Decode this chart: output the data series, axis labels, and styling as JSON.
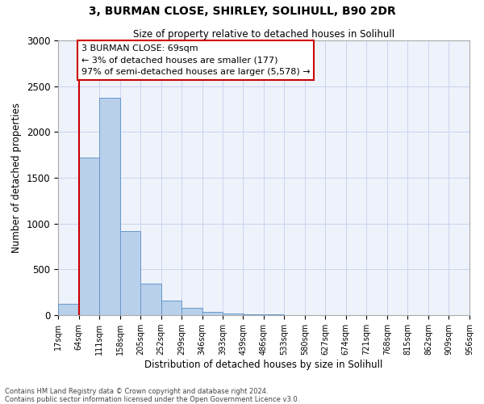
{
  "title": "3, BURMAN CLOSE, SHIRLEY, SOLIHULL, B90 2DR",
  "subtitle": "Size of property relative to detached houses in Solihull",
  "xlabel": "Distribution of detached houses by size in Solihull",
  "ylabel": "Number of detached properties",
  "bar_color": "#b8d0ea",
  "bar_edge_color": "#6699cc",
  "background_color": "#eef2fb",
  "annotation_box_color": "#ffffff",
  "annotation_line_color": "#cc0000",
  "bin_edges": [
    17,
    64,
    111,
    158,
    205,
    252,
    299,
    346,
    393,
    439,
    486,
    533,
    580,
    627,
    674,
    721,
    768,
    815,
    862,
    909,
    956
  ],
  "bar_heights": [
    125,
    1720,
    2370,
    920,
    345,
    155,
    80,
    35,
    18,
    10,
    5,
    2,
    2,
    1,
    1,
    1,
    0,
    0,
    0,
    1
  ],
  "tick_labels": [
    "17sqm",
    "64sqm",
    "111sqm",
    "158sqm",
    "205sqm",
    "252sqm",
    "299sqm",
    "346sqm",
    "393sqm",
    "439sqm",
    "486sqm",
    "533sqm",
    "580sqm",
    "627sqm",
    "674sqm",
    "721sqm",
    "768sqm",
    "815sqm",
    "862sqm",
    "909sqm",
    "956sqm"
  ],
  "ylim": [
    0,
    3000
  ],
  "yticks": [
    0,
    500,
    1000,
    1500,
    2000,
    2500,
    3000
  ],
  "property_line_x": 64,
  "annotation_title": "3 BURMAN CLOSE: 69sqm",
  "annotation_line1": "← 3% of detached houses are smaller (177)",
  "annotation_line2": "97% of semi-detached houses are larger (5,578) →",
  "footer_line1": "Contains HM Land Registry data © Crown copyright and database right 2024.",
  "footer_line2": "Contains public sector information licensed under the Open Government Licence v3.0.",
  "grid_color": "#ccd4ee"
}
